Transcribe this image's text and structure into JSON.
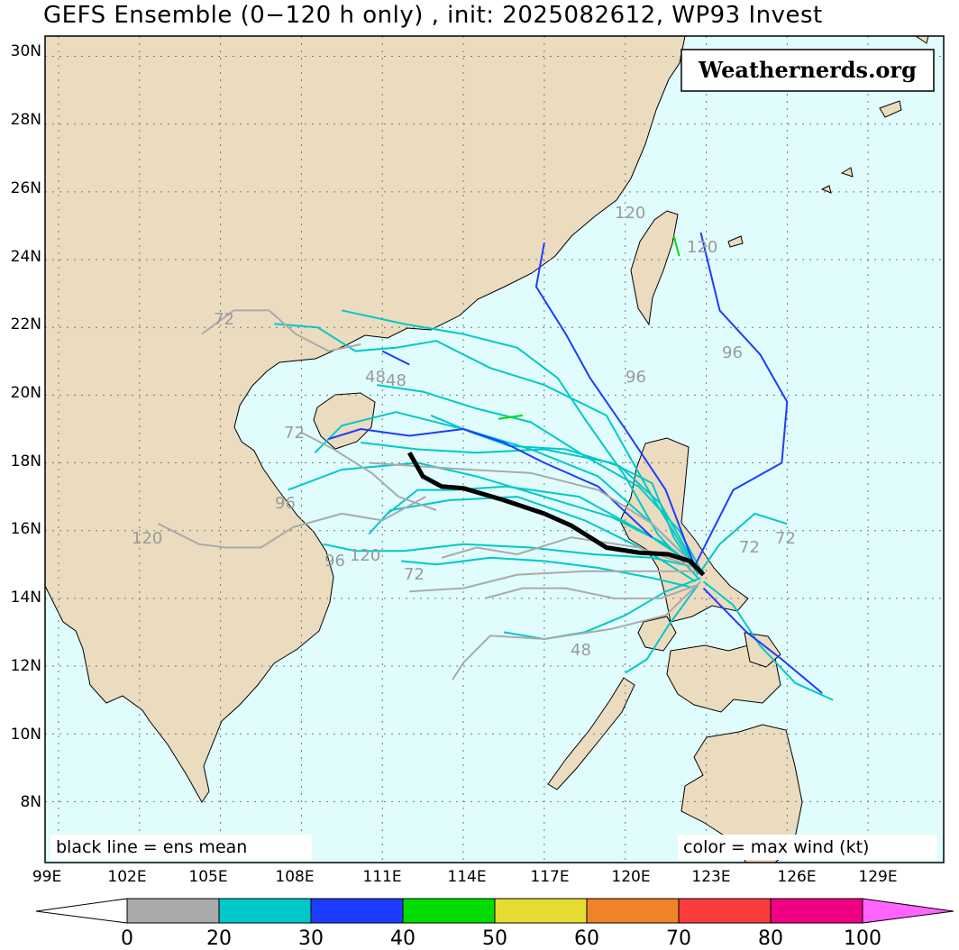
{
  "title": "GEFS Ensemble (0−120 h only) , init: 2025082612, WP93 Invest",
  "brand": "Weathernerds.org",
  "legend_left": "black line = ens mean",
  "legend_right": "color = max wind (kt)",
  "lat_labels": [
    "30N",
    "28N",
    "26N",
    "24N",
    "22N",
    "20N",
    "18N",
    "16N",
    "14N",
    "12N",
    "10N",
    "8N"
  ],
  "lon_labels": [
    "99E",
    "102E",
    "105E",
    "108E",
    "111E",
    "114E",
    "117E",
    "120E",
    "123E",
    "126E",
    "129E"
  ],
  "hour_labels": [
    "72",
    "48",
    "48",
    "72",
    "96",
    "120",
    "120",
    "96",
    "72",
    "48",
    "120",
    "96",
    "72",
    "72",
    "120",
    "96"
  ],
  "colorbar": {
    "labels": [
      "0",
      "20",
      "30",
      "40",
      "50",
      "60",
      "70",
      "80",
      "100"
    ],
    "colors": [
      "#aaaaaa",
      "#00c8c8",
      "#1e3cff",
      "#00dc00",
      "#e6dc32",
      "#f08228",
      "#fa3c3c",
      "#f00082",
      "#ff64ff"
    ]
  },
  "colors": {
    "ocean": "#e0fcfc",
    "land": "#ebdcc0",
    "coast": "#000000",
    "mean_track": "#000000"
  },
  "chart_data": {
    "type": "map-tracks",
    "extent": {
      "lon": [
        98.5,
        131.8
      ],
      "lat": [
        6.2,
        30.6
      ]
    },
    "mean_track": [
      [
        112.0,
        18.3
      ],
      [
        112.5,
        17.6
      ],
      [
        113.2,
        17.3
      ],
      [
        114.0,
        17.25
      ],
      [
        115.5,
        16.9
      ],
      [
        117.0,
        16.5
      ],
      [
        118.0,
        16.15
      ],
      [
        119.3,
        15.5
      ],
      [
        120.5,
        15.35
      ],
      [
        121.6,
        15.3
      ],
      [
        122.4,
        15.1
      ],
      [
        122.9,
        14.7
      ]
    ],
    "members": [
      {
        "c": "#00c8c8",
        "p": [
          [
            122.9,
            14.7
          ],
          [
            121.5,
            15.6
          ],
          [
            119.5,
            16.4
          ],
          [
            117.0,
            17.0
          ],
          [
            114.5,
            17.6
          ],
          [
            112.3,
            18.0
          ],
          [
            109.5,
            17.8
          ],
          [
            107.5,
            17.2
          ]
        ]
      },
      {
        "c": "#00c8c8",
        "p": [
          [
            122.8,
            14.8
          ],
          [
            121.0,
            16.2
          ],
          [
            119.0,
            17.6
          ],
          [
            116.5,
            18.4
          ],
          [
            114.0,
            19.0
          ],
          [
            111.5,
            19.5
          ],
          [
            109.5,
            19.1
          ],
          [
            108.5,
            18.3
          ]
        ]
      },
      {
        "c": "#00c8c8",
        "p": [
          [
            122.7,
            14.6
          ],
          [
            121.2,
            15.9
          ],
          [
            120.0,
            17.6
          ],
          [
            118.5,
            19.3
          ],
          [
            117.5,
            20.5
          ],
          [
            116.0,
            21.4
          ],
          [
            114.0,
            21.8
          ],
          [
            111.8,
            22.1
          ],
          [
            109.5,
            22.5
          ]
        ]
      },
      {
        "c": "#00c8c8",
        "p": [
          [
            122.6,
            14.5
          ],
          [
            120.8,
            15.4
          ],
          [
            118.5,
            16.3
          ],
          [
            116.0,
            17.0
          ],
          [
            113.5,
            16.9
          ],
          [
            111.3,
            16.6
          ],
          [
            110.5,
            15.9
          ]
        ]
      },
      {
        "c": "#00c8c8",
        "p": [
          [
            122.7,
            14.9
          ],
          [
            121.0,
            15.2
          ],
          [
            118.8,
            15.3
          ],
          [
            116.5,
            15.5
          ],
          [
            114.0,
            15.6
          ],
          [
            111.8,
            15.4
          ],
          [
            110.0,
            15.4
          ],
          [
            108.8,
            15.6
          ]
        ]
      },
      {
        "c": "#00c8c8",
        "p": [
          [
            122.9,
            14.7
          ],
          [
            122.0,
            16.0
          ],
          [
            120.5,
            17.3
          ],
          [
            118.5,
            18.2
          ],
          [
            116.5,
            19.2
          ],
          [
            114.5,
            19.6
          ],
          [
            112.5,
            20.1
          ],
          [
            110.8,
            20.3
          ]
        ]
      },
      {
        "c": "#00c8c8",
        "p": [
          [
            122.8,
            14.6
          ],
          [
            121.5,
            14.2
          ],
          [
            120.0,
            13.5
          ],
          [
            118.5,
            13.0
          ],
          [
            117.0,
            12.8
          ],
          [
            115.5,
            13.0
          ]
        ]
      },
      {
        "c": "#00c8c8",
        "p": [
          [
            122.7,
            14.7
          ],
          [
            121.8,
            15.8
          ],
          [
            121.0,
            17.4
          ],
          [
            119.5,
            18.0
          ],
          [
            117.0,
            18.4
          ],
          [
            114.5,
            18.3
          ],
          [
            112.3,
            18.4
          ],
          [
            110.2,
            18.6
          ]
        ]
      },
      {
        "c": "#00c8c8",
        "p": [
          [
            122.9,
            14.5
          ],
          [
            124.0,
            13.8
          ],
          [
            125.0,
            12.6
          ],
          [
            126.3,
            11.5
          ],
          [
            127.7,
            11.0
          ]
        ]
      },
      {
        "c": "#00c8c8",
        "p": [
          [
            122.8,
            14.8
          ],
          [
            123.5,
            15.6
          ],
          [
            124.8,
            16.5
          ],
          [
            126.0,
            16.2
          ]
        ]
      },
      {
        "c": "#00c8c8",
        "p": [
          [
            122.6,
            14.9
          ],
          [
            121.0,
            17.0
          ],
          [
            119.3,
            19.4
          ],
          [
            117.0,
            20.3
          ],
          [
            115.0,
            20.8
          ],
          [
            113.0,
            21.6
          ],
          [
            111.5,
            21.4
          ],
          [
            110.0,
            21.3
          ],
          [
            108.6,
            22.0
          ],
          [
            107.0,
            22.1
          ]
        ]
      },
      {
        "c": "#00c8c8",
        "p": [
          [
            122.7,
            14.4
          ],
          [
            121.6,
            13.2
          ],
          [
            120.8,
            12.2
          ],
          [
            120.0,
            11.8
          ]
        ]
      },
      {
        "c": "#00c8c8",
        "p": [
          [
            122.9,
            14.8
          ],
          [
            120.8,
            15.9
          ],
          [
            118.3,
            17.0
          ],
          [
            115.6,
            17.3
          ],
          [
            113.6,
            17.2
          ],
          [
            112.3,
            17.2
          ],
          [
            111.2,
            16.5
          ]
        ]
      },
      {
        "c": "#00c8c8",
        "p": [
          [
            122.6,
            14.3
          ],
          [
            121.0,
            14.6
          ],
          [
            119.0,
            14.9
          ],
          [
            117.0,
            15.1
          ],
          [
            115.0,
            15.2
          ],
          [
            113.0,
            15.0
          ],
          [
            111.7,
            15.1
          ]
        ]
      },
      {
        "c": "#00c8c8",
        "p": [
          [
            122.8,
            14.7
          ],
          [
            121.3,
            16.8
          ],
          [
            119.8,
            17.9
          ],
          [
            117.8,
            18.4
          ],
          [
            115.7,
            18.5
          ],
          [
            114.3,
            18.9
          ],
          [
            112.8,
            19.4
          ]
        ]
      },
      {
        "c": "#1e3cff",
        "p": [
          [
            122.6,
            15.0
          ],
          [
            124.0,
            17.2
          ],
          [
            125.8,
            18.0
          ],
          [
            126.0,
            19.8
          ],
          [
            125.0,
            21.2
          ],
          [
            123.5,
            22.5
          ],
          [
            122.8,
            24.8
          ]
        ]
      },
      {
        "c": "#1e3cff",
        "p": [
          [
            122.5,
            15.1
          ],
          [
            121.5,
            17.2
          ],
          [
            120.0,
            19.0
          ],
          [
            118.7,
            20.5
          ],
          [
            117.8,
            21.8
          ],
          [
            116.7,
            23.2
          ],
          [
            117.0,
            24.5
          ]
        ]
      },
      {
        "c": "#1e3cff",
        "p": [
          [
            122.9,
            14.3
          ],
          [
            124.5,
            13.0
          ],
          [
            125.8,
            12.2
          ],
          [
            127.3,
            11.2
          ]
        ]
      },
      {
        "c": "#1e3cff",
        "p": [
          [
            121.0,
            15.8
          ],
          [
            119.0,
            17.3
          ],
          [
            117.0,
            18.0
          ],
          [
            115.5,
            18.6
          ],
          [
            114.0,
            19.0
          ],
          [
            112.0,
            18.8
          ],
          [
            110.2,
            19.0
          ],
          [
            109.0,
            18.7
          ]
        ]
      },
      {
        "c": "#1e3cff",
        "p": [
          [
            112.0,
            20.9
          ],
          [
            111.0,
            21.3
          ]
        ]
      },
      {
        "c": "#00dc00",
        "p": [
          [
            115.3,
            19.3
          ],
          [
            116.2,
            19.4
          ]
        ]
      },
      {
        "c": "#00dc00",
        "p": [
          [
            121.8,
            24.7
          ],
          [
            122.0,
            24.1
          ]
        ]
      },
      {
        "c": "#aaaaaa",
        "p": [
          [
            122.7,
            14.8
          ],
          [
            121.0,
            14.8
          ],
          [
            118.5,
            14.8
          ],
          [
            116.0,
            14.7
          ],
          [
            114.0,
            14.3
          ],
          [
            112.0,
            14.2
          ]
        ]
      },
      {
        "c": "#aaaaaa",
        "p": [
          [
            122.8,
            14.5
          ],
          [
            121.5,
            13.5
          ],
          [
            119.5,
            13.1
          ],
          [
            117.0,
            12.8
          ],
          [
            115.0,
            12.9
          ],
          [
            114.0,
            12.1
          ],
          [
            113.6,
            11.6
          ]
        ]
      },
      {
        "c": "#aaaaaa",
        "p": [
          [
            122.9,
            14.7
          ],
          [
            121.0,
            16.2
          ],
          [
            119.0,
            17.2
          ],
          [
            116.5,
            17.7
          ],
          [
            114.2,
            17.8
          ],
          [
            112.3,
            17.9
          ],
          [
            110.5,
            18.0
          ]
        ]
      },
      {
        "c": "#aaaaaa",
        "p": [
          [
            112.6,
            17.0
          ],
          [
            111.0,
            16.3
          ],
          [
            109.5,
            16.5
          ],
          [
            107.7,
            16.1
          ],
          [
            106.5,
            15.5
          ],
          [
            105.2,
            15.5
          ],
          [
            104.2,
            15.6
          ],
          [
            102.7,
            16.2
          ]
        ]
      },
      {
        "c": "#aaaaaa",
        "p": [
          [
            122.6,
            14.9
          ],
          [
            120.5,
            15.5
          ],
          [
            118.0,
            15.8
          ],
          [
            116.0,
            15.3
          ],
          [
            114.5,
            15.5
          ],
          [
            113.2,
            15.2
          ]
        ]
      },
      {
        "c": "#aaaaaa",
        "p": [
          [
            110.2,
            21.5
          ],
          [
            109.0,
            21.3
          ],
          [
            107.8,
            21.8
          ],
          [
            106.8,
            22.5
          ],
          [
            105.5,
            22.5
          ],
          [
            104.3,
            21.8
          ]
        ]
      },
      {
        "c": "#aaaaaa",
        "p": [
          [
            122.7,
            14.4
          ],
          [
            121.3,
            14.0
          ],
          [
            119.6,
            14.0
          ],
          [
            117.8,
            14.3
          ],
          [
            116.2,
            14.3
          ],
          [
            114.8,
            14.0
          ]
        ]
      },
      {
        "c": "#aaaaaa",
        "p": [
          [
            113.0,
            16.6
          ],
          [
            111.6,
            17.0
          ],
          [
            110.6,
            17.7
          ],
          [
            109.2,
            18.4
          ],
          [
            108.0,
            18.9
          ]
        ]
      }
    ]
  }
}
